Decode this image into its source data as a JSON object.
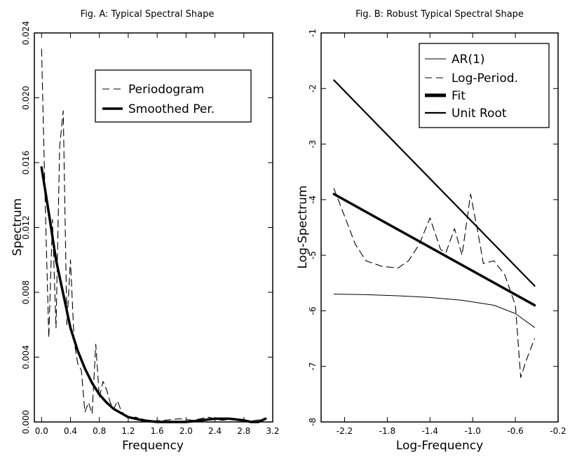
{
  "chart_data": [
    {
      "type": "line",
      "title": "Fig. A: Typical Spectral Shape",
      "xlabel": "Frequency",
      "ylabel": "Spectrum",
      "xlim": [
        -0.1,
        3.2
      ],
      "ylim": [
        0.0,
        0.024
      ],
      "xticks": [
        "0.0",
        "0.4",
        "0.8",
        "1.2",
        "1.6",
        "2.0",
        "2.4",
        "2.8",
        "3.2"
      ],
      "yticks": [
        "0.000",
        "0.004",
        "0.008",
        "0.012",
        "0.016",
        "0.020",
        "0.024"
      ],
      "legend_position": "top-right",
      "series": [
        {
          "name": "Periodogram",
          "style": "dashed",
          "points": [
            [
              0.0,
              0.023
            ],
            [
              0.05,
              0.0135
            ],
            [
              0.1,
              0.0052
            ],
            [
              0.15,
              0.0125
            ],
            [
              0.2,
              0.0058
            ],
            [
              0.25,
              0.017
            ],
            [
              0.3,
              0.0192
            ],
            [
              0.35,
              0.006
            ],
            [
              0.4,
              0.01
            ],
            [
              0.45,
              0.005
            ],
            [
              0.5,
              0.0036
            ],
            [
              0.55,
              0.0032
            ],
            [
              0.6,
              0.0006
            ],
            [
              0.65,
              0.0012
            ],
            [
              0.7,
              0.0005
            ],
            [
              0.75,
              0.0048
            ],
            [
              0.8,
              0.0015
            ],
            [
              0.85,
              0.0025
            ],
            [
              0.9,
              0.002
            ],
            [
              0.95,
              0.0012
            ],
            [
              1.0,
              0.0008
            ],
            [
              1.05,
              0.0013
            ],
            [
              1.1,
              0.0007
            ],
            [
              1.2,
              0.0002
            ],
            [
              1.3,
              0.0003
            ],
            [
              1.5,
              5e-05
            ],
            [
              1.7,
              0.0001
            ],
            [
              1.9,
              0.0002
            ],
            [
              2.1,
              0.0001
            ],
            [
              2.3,
              0.0003
            ],
            [
              2.5,
              0.0001
            ],
            [
              2.7,
              0.0002
            ],
            [
              2.9,
              5e-05
            ],
            [
              3.1,
              0.0002
            ]
          ]
        },
        {
          "name": "Smoothed Per.",
          "style": "thick",
          "points": [
            [
              0.0,
              0.0157
            ],
            [
              0.1,
              0.0129
            ],
            [
              0.2,
              0.01
            ],
            [
              0.3,
              0.0079
            ],
            [
              0.4,
              0.0058
            ],
            [
              0.5,
              0.0044
            ],
            [
              0.6,
              0.0033
            ],
            [
              0.7,
              0.0024
            ],
            [
              0.8,
              0.0017
            ],
            [
              0.9,
              0.0012
            ],
            [
              1.0,
              0.0008
            ],
            [
              1.2,
              0.0003
            ],
            [
              1.4,
              0.0001
            ],
            [
              1.6,
              0.0
            ],
            [
              1.8,
              0.0
            ],
            [
              2.0,
              0.0
            ],
            [
              2.2,
              0.0001
            ],
            [
              2.4,
              0.0002
            ],
            [
              2.6,
              0.0002
            ],
            [
              2.8,
              0.0001
            ],
            [
              2.9,
              0.0
            ],
            [
              3.0,
              0.0
            ],
            [
              3.1,
              0.0002
            ]
          ]
        }
      ]
    },
    {
      "type": "line",
      "title": "Fig. B: Robust Typical Spectral Shape",
      "xlabel": "Log-Frequency",
      "ylabel": "Log-Spectrum",
      "xlim": [
        -2.42,
        -0.2
      ],
      "ylim": [
        -8,
        -1
      ],
      "xticks": [
        "-2.2",
        "-1.8",
        "-1.4",
        "-1.0",
        "-0.6",
        "-0.2"
      ],
      "yticks": [
        "-8",
        "-7",
        "-6",
        "-5",
        "-4",
        "-3",
        "-2",
        "-1"
      ],
      "legend_position": "top-right",
      "series": [
        {
          "name": "AR(1)",
          "style": "thin",
          "points": [
            [
              -2.3,
              -5.7
            ],
            [
              -2.0,
              -5.71
            ],
            [
              -1.7,
              -5.73
            ],
            [
              -1.4,
              -5.76
            ],
            [
              -1.1,
              -5.81
            ],
            [
              -0.8,
              -5.9
            ],
            [
              -0.6,
              -6.05
            ],
            [
              -0.42,
              -6.3
            ]
          ]
        },
        {
          "name": "Log-Period.",
          "style": "dashed",
          "points": [
            [
              -2.3,
              -3.8
            ],
            [
              -2.2,
              -4.3
            ],
            [
              -2.1,
              -4.8
            ],
            [
              -2.0,
              -5.1
            ],
            [
              -1.85,
              -5.2
            ],
            [
              -1.7,
              -5.23
            ],
            [
              -1.6,
              -5.1
            ],
            [
              -1.5,
              -4.8
            ],
            [
              -1.4,
              -4.33
            ],
            [
              -1.3,
              -4.9
            ],
            [
              -1.25,
              -4.95
            ],
            [
              -1.17,
              -4.52
            ],
            [
              -1.1,
              -5.0
            ],
            [
              -1.02,
              -3.9
            ],
            [
              -0.95,
              -4.6
            ],
            [
              -0.9,
              -5.15
            ],
            [
              -0.8,
              -5.1
            ],
            [
              -0.7,
              -5.35
            ],
            [
              -0.6,
              -5.9
            ],
            [
              -0.55,
              -7.2
            ],
            [
              -0.5,
              -6.9
            ],
            [
              -0.42,
              -6.5
            ]
          ]
        },
        {
          "name": "Fit",
          "style": "thick",
          "points": [
            [
              -2.3,
              -3.9
            ],
            [
              -0.42,
              -5.9
            ]
          ]
        },
        {
          "name": "Unit Root",
          "style": "medium",
          "points": [
            [
              -2.3,
              -1.85
            ],
            [
              -0.42,
              -5.55
            ]
          ]
        }
      ]
    }
  ]
}
